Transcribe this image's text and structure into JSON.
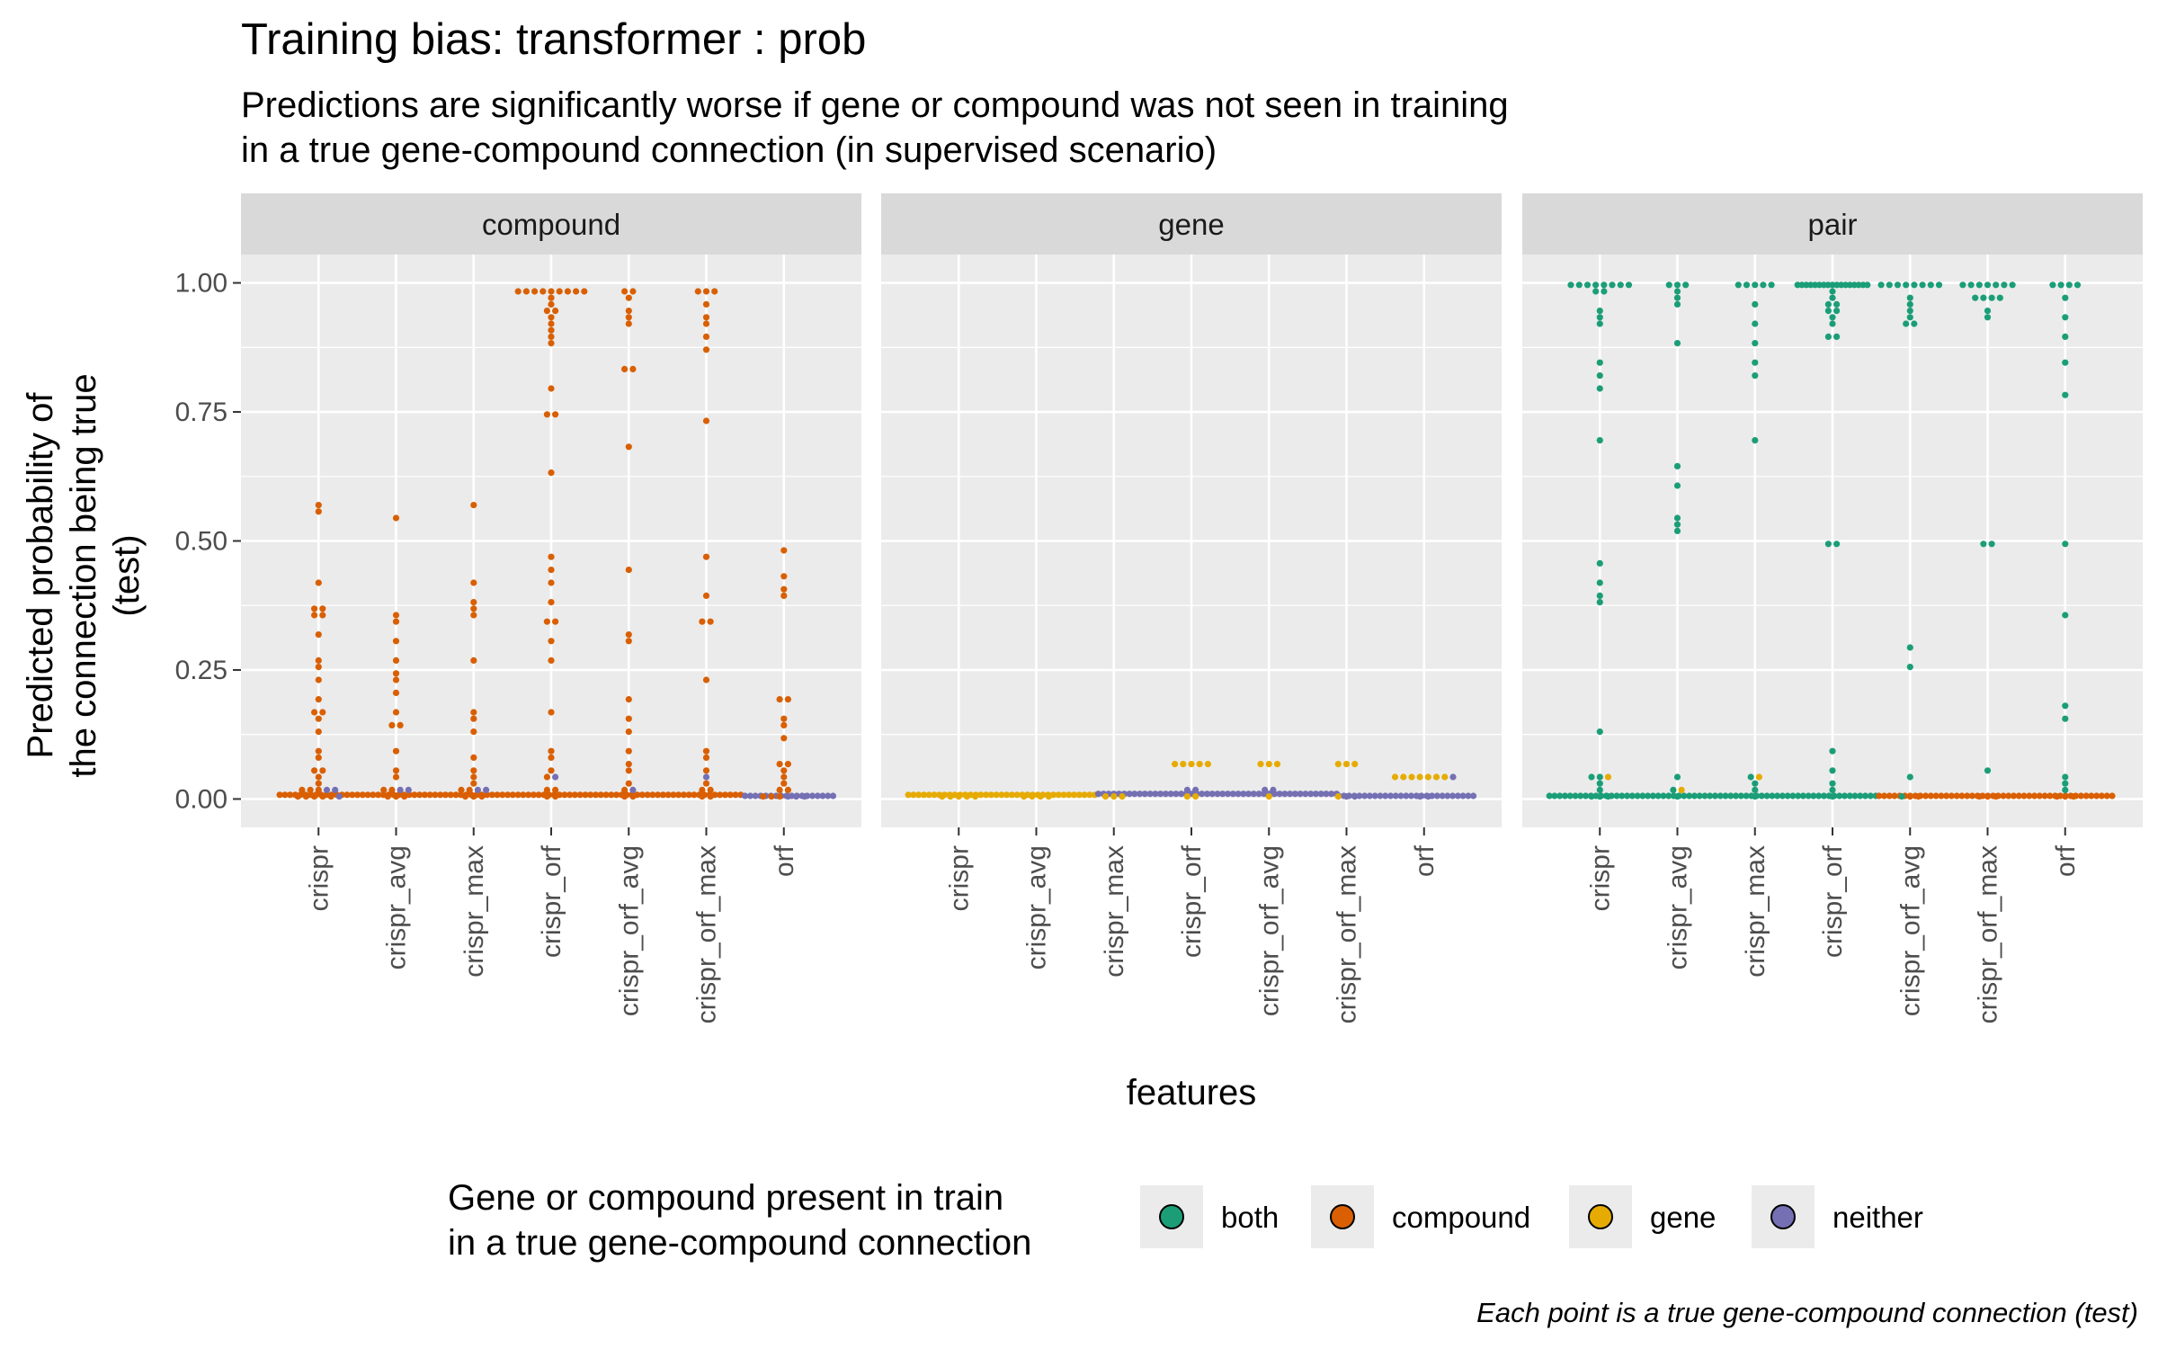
{
  "chart_data": {
    "type": "scatter",
    "title": "Training bias: transformer : prob",
    "subtitle": [
      "Predictions are significantly worse if gene or compound was not seen in training",
      "in a true gene-compound connection (in supervised scenario)"
    ],
    "ylabel": [
      "Predicted probability of",
      "the connection being true",
      "(test)"
    ],
    "xlabel": "features",
    "caption": "Each point is a true gene-compound connection (test)",
    "ylim": [
      -0.055,
      1.055
    ],
    "yticks": [
      0,
      0.25,
      0.5,
      0.75,
      1.0
    ],
    "ytick_labels": [
      "0.00",
      "0.25",
      "0.50",
      "0.75",
      "1.00"
    ],
    "categories": [
      "crispr",
      "crispr_avg",
      "crispr_max",
      "crispr_orf",
      "crispr_orf_avg",
      "crispr_orf_max",
      "orf"
    ],
    "facets": [
      "compound",
      "gene",
      "pair"
    ],
    "legend": {
      "title": [
        "Gene or compound present in train",
        "in a true gene-compound connection"
      ],
      "position": "bottom",
      "items": [
        {
          "label": "both",
          "color": "#1b9e77"
        },
        {
          "label": "compound",
          "color": "#d95f02"
        },
        {
          "label": "gene",
          "color": "#e6ab02"
        },
        {
          "label": "neither",
          "color": "#7570b3"
        }
      ]
    },
    "grid": true,
    "colors": {
      "panel_bg": "#ebebeb",
      "strip_bg": "#d9d9d9",
      "grid": "#ffffff"
    },
    "series": [
      {
        "facet": "compound",
        "category": "crispr",
        "group": "compound",
        "values": [
          0.57,
          0.56,
          0.42,
          0.37,
          0.37,
          0.36,
          0.36,
          0.32,
          0.27,
          0.25,
          0.23,
          0.19,
          0.17,
          0.17,
          0.15,
          0.13,
          0.09,
          0.08,
          0.06,
          0.05,
          0.04,
          0.03,
          0.02,
          0.02,
          0.02,
          0.01,
          0.01,
          0.01,
          0.01,
          0.01
        ]
      },
      {
        "facet": "compound",
        "category": "crispr",
        "group": "neither",
        "values": [
          0.02,
          0.02,
          0.01
        ]
      },
      {
        "facet": "compound",
        "category": "crispr_avg",
        "group": "compound",
        "values": [
          0.55,
          0.36,
          0.34,
          0.3,
          0.27,
          0.24,
          0.23,
          0.2,
          0.17,
          0.14,
          0.14,
          0.09,
          0.06,
          0.04,
          0.02,
          0.02,
          0.01,
          0.01,
          0.01
        ]
      },
      {
        "facet": "compound",
        "category": "crispr_avg",
        "group": "neither",
        "values": [
          0.02,
          0.02
        ]
      },
      {
        "facet": "compound",
        "category": "crispr_max",
        "group": "compound",
        "values": [
          0.57,
          0.42,
          0.38,
          0.37,
          0.36,
          0.27,
          0.17,
          0.15,
          0.13,
          0.08,
          0.06,
          0.04,
          0.03,
          0.02,
          0.02,
          0.01,
          0.01,
          0.01
        ]
      },
      {
        "facet": "compound",
        "category": "crispr_max",
        "group": "neither",
        "values": [
          0.02,
          0.02
        ]
      },
      {
        "facet": "compound",
        "category": "crispr_orf",
        "group": "compound",
        "values": [
          0.98,
          0.98,
          0.98,
          0.98,
          0.98,
          0.98,
          0.98,
          0.98,
          0.98,
          0.97,
          0.96,
          0.95,
          0.94,
          0.93,
          0.92,
          0.91,
          0.89,
          0.88,
          0.8,
          0.75,
          0.74,
          0.63,
          0.47,
          0.45,
          0.42,
          0.38,
          0.34,
          0.34,
          0.3,
          0.27,
          0.17,
          0.09,
          0.08,
          0.06,
          0.04,
          0.02,
          0.02,
          0.01,
          0.01
        ]
      },
      {
        "facet": "compound",
        "category": "crispr_orf",
        "group": "neither",
        "values": [
          0.04
        ]
      },
      {
        "facet": "compound",
        "category": "crispr_orf_avg",
        "group": "compound",
        "values": [
          0.98,
          0.98,
          0.97,
          0.95,
          0.93,
          0.92,
          0.83,
          0.83,
          0.68,
          0.45,
          0.32,
          0.3,
          0.19,
          0.16,
          0.13,
          0.09,
          0.07,
          0.05,
          0.03,
          0.02,
          0.01,
          0.01
        ]
      },
      {
        "facet": "compound",
        "category": "crispr_orf_avg",
        "group": "neither",
        "values": [
          0.02
        ]
      },
      {
        "facet": "compound",
        "category": "crispr_orf_max",
        "group": "compound",
        "values": [
          0.98,
          0.98,
          0.98,
          0.96,
          0.93,
          0.92,
          0.9,
          0.87,
          0.73,
          0.47,
          0.39,
          0.34,
          0.34,
          0.23,
          0.09,
          0.08,
          0.05,
          0.03,
          0.02,
          0.02,
          0.01,
          0.01
        ]
      },
      {
        "facet": "compound",
        "category": "crispr_orf_max",
        "group": "neither",
        "values": [
          0.04
        ]
      },
      {
        "facet": "compound",
        "category": "orf",
        "group": "compound",
        "values": [
          0.48,
          0.43,
          0.41,
          0.39,
          0.19,
          0.19,
          0.16,
          0.14,
          0.12,
          0.07,
          0.07,
          0.05,
          0.04,
          0.03,
          0.02,
          0.02,
          0.01,
          0.01,
          0.01
        ]
      },
      {
        "facet": "compound",
        "category": "orf",
        "group": "neither",
        "values": [
          0.01,
          0.01,
          0.01
        ]
      },
      {
        "facet": "gene",
        "category": "crispr",
        "group": "gene",
        "values": [
          0.01,
          0.01,
          0.01,
          0.01,
          0.01
        ]
      },
      {
        "facet": "gene",
        "category": "crispr_avg",
        "group": "gene",
        "values": [
          0.01,
          0.01,
          0.01,
          0.01
        ]
      },
      {
        "facet": "gene",
        "category": "crispr_max",
        "group": "gene",
        "values": [
          0.01,
          0.01,
          0.01
        ]
      },
      {
        "facet": "gene",
        "category": "crispr_orf",
        "group": "gene",
        "values": [
          0.065,
          0.065,
          0.065,
          0.065,
          0.065,
          0.01,
          0.01
        ]
      },
      {
        "facet": "gene",
        "category": "crispr_orf",
        "group": "neither",
        "values": [
          0.015,
          0.015
        ]
      },
      {
        "facet": "gene",
        "category": "crispr_orf_avg",
        "group": "gene",
        "values": [
          0.07,
          0.065,
          0.065,
          0.01
        ]
      },
      {
        "facet": "gene",
        "category": "crispr_orf_avg",
        "group": "neither",
        "values": [
          0.015,
          0.015
        ]
      },
      {
        "facet": "gene",
        "category": "crispr_orf_max",
        "group": "gene",
        "values": [
          0.07,
          0.065,
          0.065,
          0.01
        ]
      },
      {
        "facet": "gene",
        "category": "crispr_orf_max",
        "group": "neither",
        "values": [
          0.01,
          0.01
        ]
      },
      {
        "facet": "gene",
        "category": "orf",
        "group": "gene",
        "values": [
          0.04,
          0.04,
          0.04,
          0.04,
          0.04,
          0.04,
          0.04
        ]
      },
      {
        "facet": "gene",
        "category": "orf",
        "group": "neither",
        "values": [
          0.04,
          0.01,
          0.01
        ]
      },
      {
        "facet": "pair",
        "category": "crispr",
        "group": "both",
        "values": [
          1.0,
          1.0,
          1.0,
          1.0,
          1.0,
          0.99,
          0.99,
          0.99,
          0.98,
          0.98,
          0.95,
          0.93,
          0.92,
          0.84,
          0.82,
          0.79,
          0.69,
          0.46,
          0.42,
          0.4,
          0.38,
          0.13,
          0.04,
          0.04,
          0.03,
          0.02,
          0.01,
          0.01,
          0.01
        ]
      },
      {
        "facet": "pair",
        "category": "crispr",
        "group": "gene",
        "values": [
          0.04
        ]
      },
      {
        "facet": "pair",
        "category": "crispr_avg",
        "group": "both",
        "values": [
          1.0,
          1.0,
          0.99,
          0.98,
          0.97,
          0.96,
          0.88,
          0.64,
          0.61,
          0.55,
          0.53,
          0.52,
          0.04,
          0.02,
          0.01
        ]
      },
      {
        "facet": "pair",
        "category": "crispr_avg",
        "group": "gene",
        "values": [
          0.02
        ]
      },
      {
        "facet": "pair",
        "category": "crispr_max",
        "group": "both",
        "values": [
          1.0,
          1.0,
          1.0,
          0.99,
          0.99,
          0.96,
          0.92,
          0.88,
          0.84,
          0.82,
          0.69,
          0.04,
          0.03,
          0.02,
          0.01
        ]
      },
      {
        "facet": "pair",
        "category": "crispr_max",
        "group": "gene",
        "values": [
          0.04
        ]
      },
      {
        "facet": "pair",
        "category": "crispr_orf",
        "group": "both",
        "values": [
          1.0,
          1.0,
          1.0,
          1.0,
          1.0,
          1.0,
          1.0,
          1.0,
          1.0,
          1.0,
          1.0,
          1.0,
          1.0,
          1.0,
          1.0,
          1.0,
          1.0,
          0.98,
          0.97,
          0.96,
          0.96,
          0.95,
          0.94,
          0.93,
          0.92,
          0.9,
          0.89,
          0.49,
          0.49,
          0.09,
          0.06,
          0.03,
          0.02,
          0.01
        ]
      },
      {
        "facet": "pair",
        "category": "crispr_orf_avg",
        "group": "both",
        "values": [
          1.0,
          1.0,
          1.0,
          1.0,
          1.0,
          1.0,
          1.0,
          0.99,
          0.97,
          0.96,
          0.95,
          0.93,
          0.92,
          0.92,
          0.29,
          0.26,
          0.04,
          0.01
        ]
      },
      {
        "facet": "pair",
        "category": "crispr_orf_avg",
        "group": "compound",
        "values": [
          0.01,
          0.01
        ]
      },
      {
        "facet": "pair",
        "category": "crispr_orf_max",
        "group": "both",
        "values": [
          1.0,
          1.0,
          1.0,
          1.0,
          1.0,
          1.0,
          1.0,
          0.97,
          0.97,
          0.97,
          0.97,
          0.95,
          0.93,
          0.49,
          0.49,
          0.06
        ]
      },
      {
        "facet": "pair",
        "category": "crispr_orf_max",
        "group": "compound",
        "values": [
          0.01,
          0.01,
          0.01
        ]
      },
      {
        "facet": "pair",
        "category": "orf",
        "group": "both",
        "values": [
          1.0,
          0.99,
          0.99,
          0.99,
          0.97,
          0.93,
          0.89,
          0.85,
          0.78,
          0.49,
          0.35,
          0.18,
          0.16,
          0.04,
          0.03,
          0.02
        ]
      },
      {
        "facet": "pair",
        "category": "orf",
        "group": "compound",
        "values": [
          0.01,
          0.01,
          0.01
        ]
      }
    ],
    "baseline_bands": [
      {
        "facet": "compound",
        "from": -0.5,
        "to": 5.5,
        "group": "compound",
        "value": 0.008
      },
      {
        "facet": "compound",
        "from": 5.5,
        "to": 6.65,
        "group": "neither",
        "value": 0.006
      },
      {
        "facet": "gene",
        "from": -0.65,
        "to": 1.8,
        "group": "gene",
        "value": 0.008
      },
      {
        "facet": "gene",
        "from": 1.8,
        "to": 4.9,
        "group": "neither",
        "value": 0.01
      },
      {
        "facet": "gene",
        "from": 4.9,
        "to": 6.65,
        "group": "neither",
        "value": 0.006
      },
      {
        "facet": "pair",
        "from": -0.65,
        "to": 3.6,
        "group": "both",
        "value": 0.006
      },
      {
        "facet": "pair",
        "from": 3.6,
        "to": 6.65,
        "group": "compound",
        "value": 0.006
      }
    ]
  }
}
